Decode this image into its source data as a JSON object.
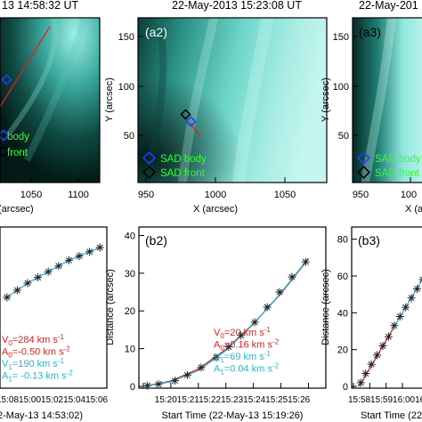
{
  "colors": {
    "red": "#e02020",
    "blue": "#2040ff",
    "cyan": "#20b8e0",
    "green": "#33ff33",
    "euv_bright": "#a8f0ea",
    "euv_mid": "#1f7a72",
    "euv_dark": "#02120f"
  },
  "panels_top": [
    {
      "id": "a1",
      "title": "13 14:58:32 UT",
      "label": "",
      "legend": [
        "body",
        "front"
      ],
      "xticks": [
        "1050",
        "1100"
      ],
      "xlabel": "(arcsec)",
      "yticks": [],
      "ylabel": ""
    },
    {
      "id": "a2",
      "title": "22-May-2013 15:23:08 UT",
      "label": "(a2)",
      "legend": [
        "SAD body",
        "SAD front"
      ],
      "xticks": [
        "950",
        "1000",
        "1050"
      ],
      "xlabel": "X (arcsec)",
      "yticks": [
        "50",
        "100",
        "150"
      ],
      "ylabel": "Y (arcsec)"
    },
    {
      "id": "a3",
      "title": "22-May-201",
      "label": "(a3)",
      "legend": [
        "SAD body",
        "SAD front"
      ],
      "xticks": [
        "950",
        "100"
      ],
      "xlabel": "X (a",
      "yticks": [
        "50",
        "100",
        "150"
      ],
      "ylabel": "Y (arcsec)"
    }
  ],
  "panels_bottom": [
    {
      "id": "b1",
      "label": "",
      "xtick_text": "15:0815:0015:0215:0415:06",
      "xlabel": "2-May-13 14:53:02)",
      "yticks": [],
      "ylabel": "",
      "fit_text": [
        {
          "sym": "V",
          "sub": "0",
          "val": "=284 km s",
          "exp": "-1",
          "color_key": "red"
        },
        {
          "sym": "A",
          "sub": "0",
          "val": "=-0.50 km s",
          "exp": "-2",
          "color_key": "red"
        },
        {
          "sym": "V",
          "sub": "1",
          "val": "=190 km s",
          "exp": "-1",
          "color_key": "cyan"
        },
        {
          "sym": "A",
          "sub": "1",
          "val": "= -0.13 km s",
          "exp": "-2",
          "color_key": "cyan"
        }
      ]
    },
    {
      "id": "b2",
      "label": "(b2)",
      "xtick_text": "15:2015:2115:2215:2315:2415:2515:26",
      "xlabel": "Start Time (22-May-13 15:19:26)",
      "yticks": [
        "0",
        "10",
        "20",
        "30",
        "40"
      ],
      "ylabel": "Distance (arcsec)",
      "fit_text": [
        {
          "sym": "V",
          "sub": "0",
          "val": "=20 km s",
          "exp": "-1",
          "color_key": "red"
        },
        {
          "sym": "A",
          "sub": "0",
          "val": "=0.16 km s",
          "exp": "-2",
          "color_key": "red"
        },
        {
          "sym": "V",
          "sub": "1",
          "val": "=69 km s",
          "exp": "-1",
          "color_key": "cyan"
        },
        {
          "sym": "A",
          "sub": "1",
          "val": "=0.04 km s",
          "exp": "-2",
          "color_key": "cyan"
        }
      ]
    },
    {
      "id": "b3",
      "label": "(b3)",
      "xtick_text": "15:5815:5916:0016:0",
      "xlabel": "Start Time (22-M",
      "yticks": [
        "0",
        "20",
        "40",
        "60",
        "80"
      ],
      "ylabel": "Distance (arcsec)",
      "fit_text": []
    }
  ],
  "chart_data": [
    {
      "type": "scatter",
      "title": "",
      "xlabel": "Start Time (22-May-13 15:19:26)",
      "ylabel": "Distance (arcsec)",
      "xticks": [
        "15:20",
        "15:21",
        "15:22",
        "15:23",
        "15:24",
        "15:25",
        "15:26"
      ],
      "yticks": [
        0,
        10,
        20,
        30,
        40
      ],
      "xlim": [
        0,
        6.5
      ],
      "ylim": [
        0,
        42
      ],
      "series": [
        {
          "marker": "asterisk",
          "x": [
            0.15,
            0.55,
            1.15,
            1.6,
            2.1,
            2.65,
            3.1,
            3.55,
            4.05,
            4.5,
            4.95,
            5.4,
            5.9
          ],
          "y": [
            0.2,
            0.6,
            1.5,
            3.0,
            5.0,
            7.6,
            10.5,
            13.5,
            17.0,
            21.0,
            25.0,
            29.0,
            33.0
          ]
        },
        {
          "style": "fit",
          "color_key": "red",
          "x": [
            0,
            1,
            2,
            3,
            4,
            5,
            6
          ],
          "y": [
            0,
            1.4,
            4.6,
            9.8,
            16.6,
            24.6,
            33.8
          ]
        },
        {
          "style": "fit",
          "color_key": "cyan",
          "x": [
            0,
            1,
            2,
            3,
            4,
            5,
            6
          ],
          "y": [
            0,
            1.2,
            4.2,
            9.5,
            16.5,
            24.8,
            34.0
          ]
        }
      ]
    },
    {
      "type": "scatter",
      "title": "",
      "xlabel": "Start Time (22-M",
      "ylabel": "Distance (arcsec)",
      "xticks": [
        "15:58",
        "15:59",
        "16:00",
        "16:0"
      ],
      "yticks": [
        0,
        20,
        40,
        60,
        80
      ],
      "xlim": [
        0,
        4.8
      ],
      "ylim": [
        0,
        90
      ],
      "series": [
        {
          "marker": "asterisk",
          "x": [
            0.45,
            0.75,
            1.1,
            1.45,
            1.8,
            2.15,
            2.5,
            2.85,
            3.2,
            3.55,
            3.9,
            4.25
          ],
          "y": [
            2,
            7,
            12,
            17,
            22,
            27,
            33,
            38,
            43,
            48,
            53,
            58
          ]
        },
        {
          "style": "fit",
          "color_key": "red",
          "x": [
            0.35,
            2.6
          ],
          "y": [
            0,
            34
          ]
        },
        {
          "style": "fit",
          "color_key": "cyan",
          "x": [
            2.4,
            4.4
          ],
          "y": [
            31,
            61
          ]
        }
      ]
    },
    {
      "type": "scatter",
      "title": "",
      "xlabel": "2-May-13 14:53:02)",
      "ylabel": "",
      "series": [
        {
          "marker": "asterisk",
          "x": [
            0.2,
            0.6,
            1.0,
            1.4,
            1.8,
            2.2,
            2.6,
            3.0,
            3.4,
            3.8
          ],
          "y": [
            20,
            25,
            30,
            34,
            38,
            42,
            46,
            49,
            52,
            55
          ]
        }
      ]
    }
  ]
}
